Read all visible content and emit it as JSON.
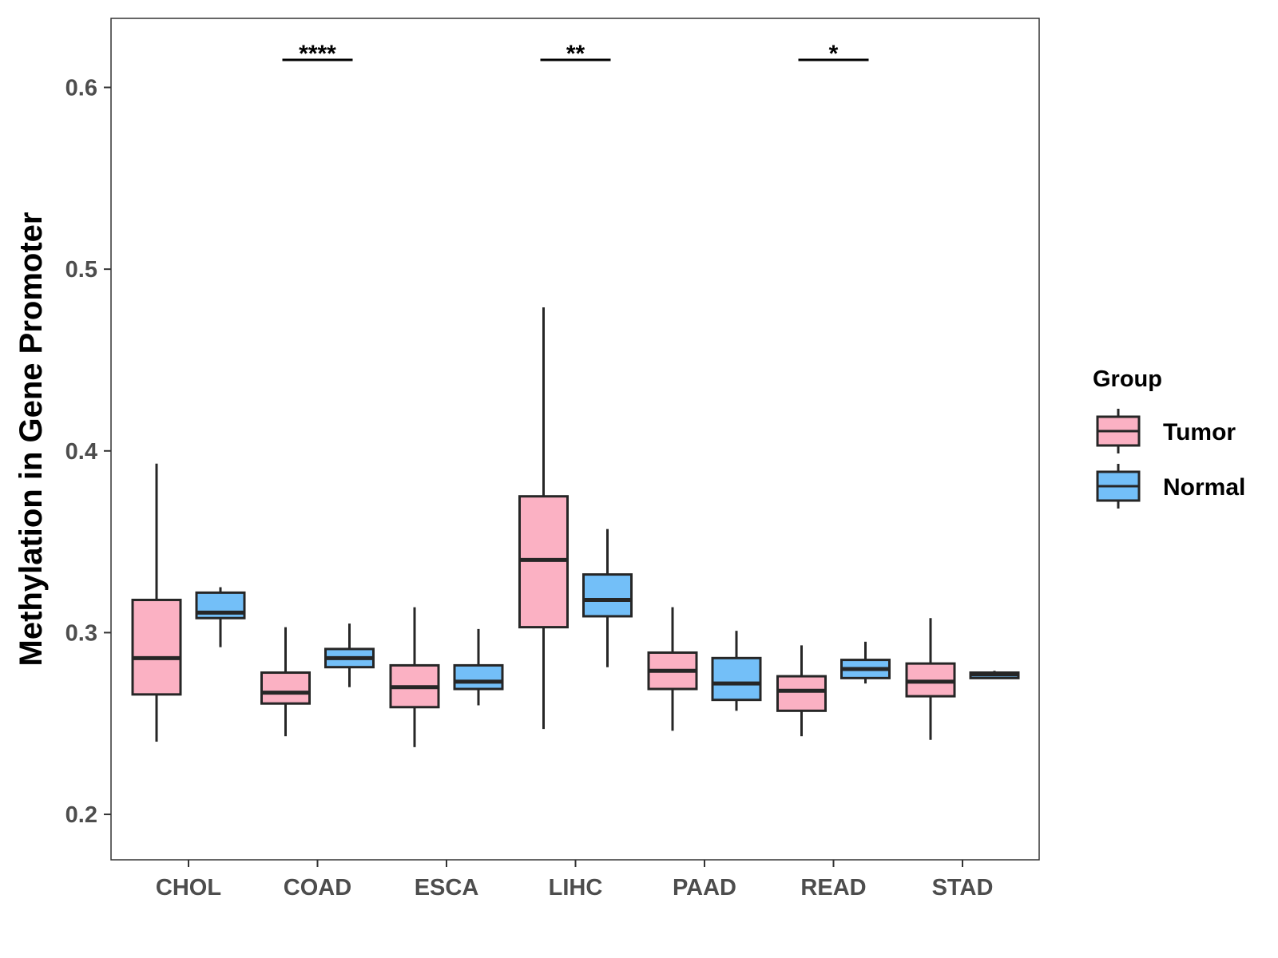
{
  "chart_data": {
    "type": "boxplot",
    "title": "",
    "xlabel": "",
    "ylabel": "Methylation in Gene Promoter",
    "ylim": [
      0.175,
      0.638
    ],
    "yticks": [
      0.2,
      0.3,
      0.4,
      0.5,
      0.6
    ],
    "ytick_labels": [
      "0.2",
      "0.3",
      "0.4",
      "0.5",
      "0.6"
    ],
    "categories": [
      "CHOL",
      "COAD",
      "ESCA",
      "LIHC",
      "PAAD",
      "READ",
      "STAD"
    ],
    "legend": {
      "title": "Group",
      "position": "right",
      "entries": [
        {
          "name": "Tumor",
          "color": "#FBB1C3"
        },
        {
          "name": "Normal",
          "color": "#73BFF8"
        }
      ]
    },
    "series": [
      {
        "name": "Tumor",
        "color": "#FBB1C3",
        "boxes": [
          {
            "category": "CHOL",
            "min": 0.24,
            "q1": 0.266,
            "median": 0.286,
            "q3": 0.318,
            "max": 0.393
          },
          {
            "category": "COAD",
            "min": 0.243,
            "q1": 0.261,
            "median": 0.267,
            "q3": 0.278,
            "max": 0.303
          },
          {
            "category": "ESCA",
            "min": 0.237,
            "q1": 0.259,
            "median": 0.27,
            "q3": 0.282,
            "max": 0.314
          },
          {
            "category": "LIHC",
            "min": 0.247,
            "q1": 0.303,
            "median": 0.34,
            "q3": 0.375,
            "max": 0.479
          },
          {
            "category": "PAAD",
            "min": 0.246,
            "q1": 0.269,
            "median": 0.279,
            "q3": 0.289,
            "max": 0.314
          },
          {
            "category": "READ",
            "min": 0.243,
            "q1": 0.257,
            "median": 0.268,
            "q3": 0.276,
            "max": 0.293
          },
          {
            "category": "STAD",
            "min": 0.241,
            "q1": 0.265,
            "median": 0.273,
            "q3": 0.283,
            "max": 0.308
          }
        ]
      },
      {
        "name": "Normal",
        "color": "#73BFF8",
        "boxes": [
          {
            "category": "CHOL",
            "min": 0.292,
            "q1": 0.308,
            "median": 0.311,
            "q3": 0.322,
            "max": 0.325
          },
          {
            "category": "COAD",
            "min": 0.27,
            "q1": 0.281,
            "median": 0.286,
            "q3": 0.291,
            "max": 0.305
          },
          {
            "category": "ESCA",
            "min": 0.26,
            "q1": 0.269,
            "median": 0.273,
            "q3": 0.282,
            "max": 0.302
          },
          {
            "category": "LIHC",
            "min": 0.281,
            "q1": 0.309,
            "median": 0.318,
            "q3": 0.332,
            "max": 0.357
          },
          {
            "category": "PAAD",
            "min": 0.257,
            "q1": 0.263,
            "median": 0.272,
            "q3": 0.286,
            "max": 0.301
          },
          {
            "category": "READ",
            "min": 0.272,
            "q1": 0.275,
            "median": 0.28,
            "q3": 0.285,
            "max": 0.295
          },
          {
            "category": "STAD",
            "min": 0.275,
            "q1": 0.275,
            "median": 0.277,
            "q3": 0.278,
            "max": 0.279
          }
        ]
      }
    ],
    "significance": [
      {
        "category": "COAD",
        "label": "****",
        "y": 0.615
      },
      {
        "category": "LIHC",
        "label": "**",
        "y": 0.615
      },
      {
        "category": "READ",
        "label": "*",
        "y": 0.615
      }
    ]
  }
}
